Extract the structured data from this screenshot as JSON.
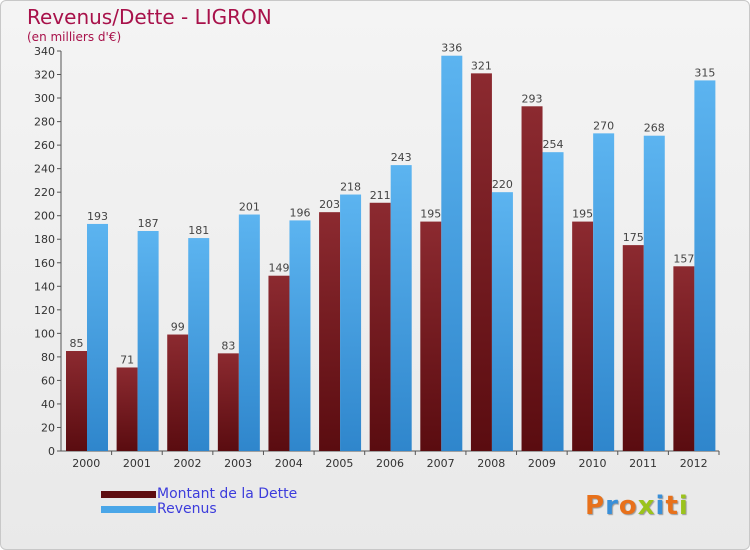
{
  "chart_data": {
    "type": "bar",
    "title": "Revenus/Dette - LIGRON",
    "subtitle": "(en milliers d'€)",
    "categories": [
      "2000",
      "2001",
      "2002",
      "2003",
      "2004",
      "2005",
      "2006",
      "2007",
      "2008",
      "2009",
      "2010",
      "2011",
      "2012"
    ],
    "series": [
      {
        "name": "Montant de la Dette",
        "color": "#7a1a1f",
        "values": [
          85,
          71,
          99,
          83,
          149,
          203,
          211,
          195,
          321,
          293,
          195,
          175,
          157
        ]
      },
      {
        "name": "Revenus",
        "color": "#4aa6e8",
        "values": [
          193,
          187,
          181,
          201,
          196,
          218,
          243,
          336,
          220,
          254,
          270,
          268,
          315
        ]
      }
    ],
    "ylim": [
      0,
      340
    ],
    "ytick_step": 20,
    "grid": false,
    "legend": "bottom-left"
  },
  "logo": {
    "text": "Proxiti",
    "colors": [
      "#e8711b",
      "#3a8fd8",
      "#e8711b",
      "#9bc31d",
      "#3a8fd8",
      "#e8711b",
      "#9bc31d"
    ]
  }
}
